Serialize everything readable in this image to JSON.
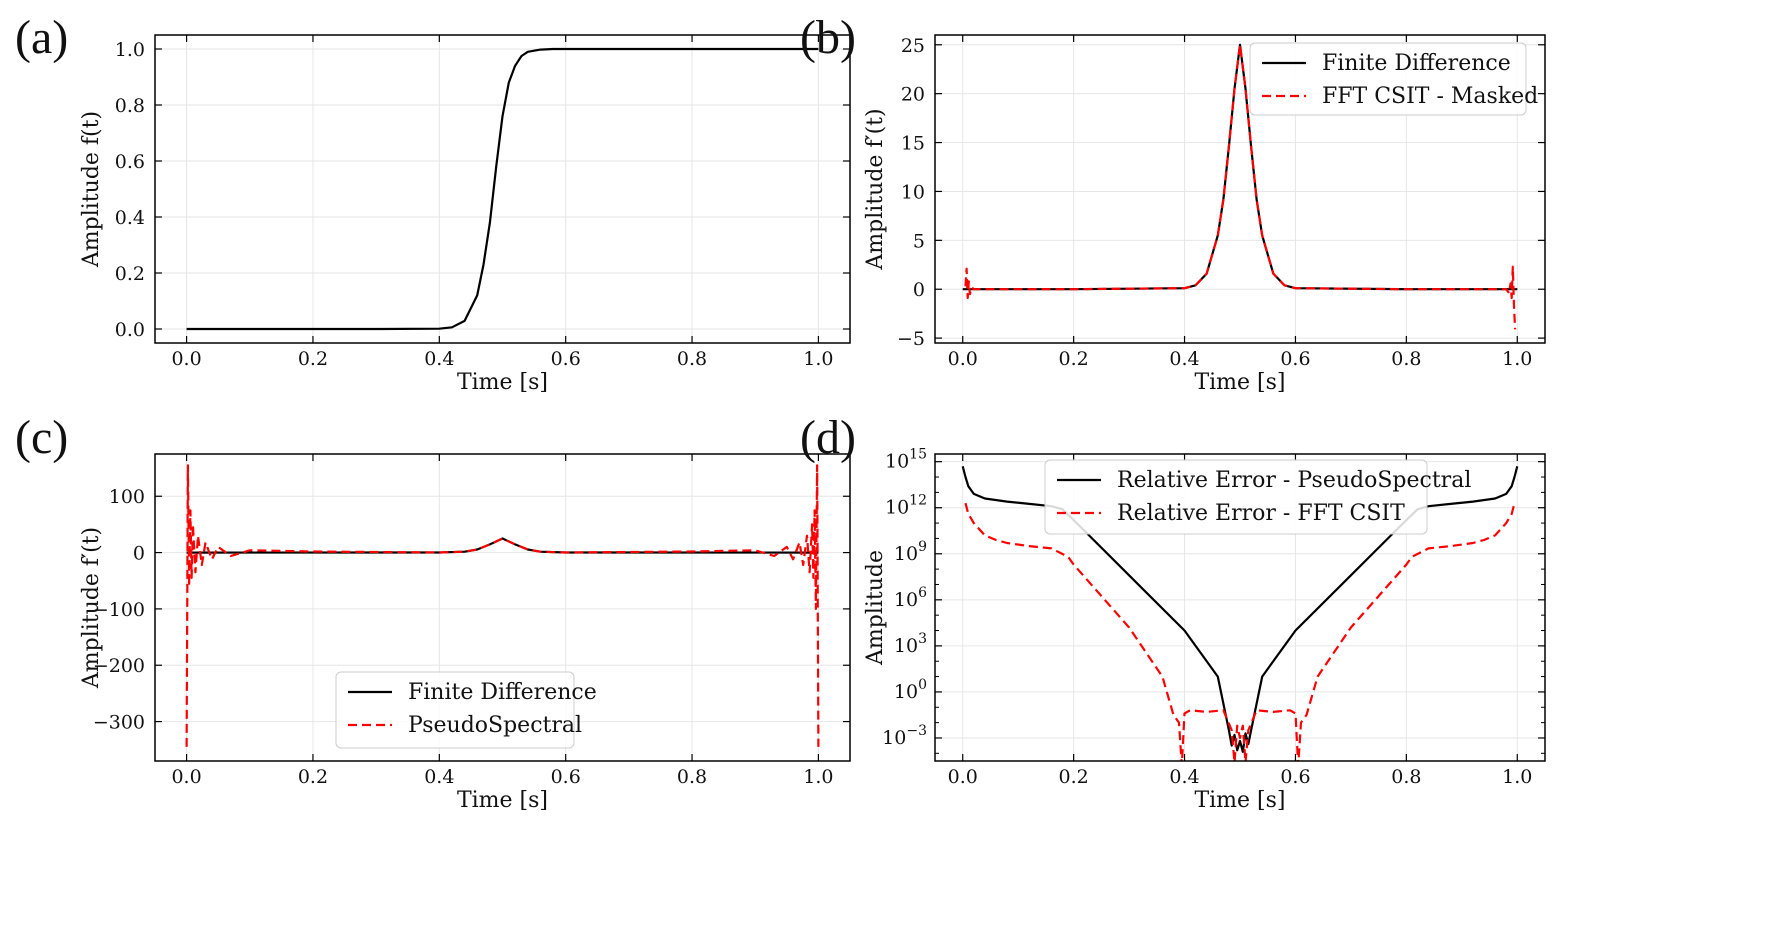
{
  "chart_data": [
    {
      "panel": "(a)",
      "type": "line",
      "xlabel": "Time [s]",
      "ylabel": "Amplitude f(t)",
      "ylabel_fn": "f(t)",
      "xlim": [
        -0.05,
        1.05
      ],
      "ylim": [
        -0.05,
        1.05
      ],
      "xticks": [
        0,
        0.2,
        0.4,
        0.6,
        0.8,
        1.0
      ],
      "xtick_labels": [
        "0.0",
        "0.2",
        "0.4",
        "0.6",
        "0.8",
        "1.0"
      ],
      "yticks": [
        0,
        0.2,
        0.4,
        0.6,
        0.8,
        1.0
      ],
      "ytick_labels": [
        "0.0",
        "0.2",
        "0.4",
        "0.6",
        "0.8",
        "1.0"
      ],
      "grid": true,
      "series": [
        {
          "name": "f(t)",
          "color": "#000000",
          "style": "solid",
          "x": [
            0,
            0.1,
            0.2,
            0.3,
            0.4,
            0.42,
            0.44,
            0.46,
            0.47,
            0.48,
            0.49,
            0.5,
            0.51,
            0.52,
            0.53,
            0.54,
            0.56,
            0.58,
            0.6,
            0.7,
            0.8,
            0.9,
            1.0
          ],
          "y": [
            0,
            0,
            0,
            0,
            0.001,
            0.006,
            0.029,
            0.12,
            0.23,
            0.38,
            0.58,
            0.76,
            0.88,
            0.94,
            0.975,
            0.99,
            0.998,
            1.0,
            1.0,
            1.0,
            1.0,
            1.0,
            1.0
          ]
        }
      ]
    },
    {
      "panel": "(b)",
      "type": "line",
      "xlabel": "Time [s]",
      "ylabel": "Amplitude f′(t)",
      "ylabel_fn": "f′(t)",
      "xlim": [
        -0.05,
        1.05
      ],
      "ylim": [
        -5.5,
        26
      ],
      "xticks": [
        0,
        0.2,
        0.4,
        0.6,
        0.8,
        1.0
      ],
      "xtick_labels": [
        "0.0",
        "0.2",
        "0.4",
        "0.6",
        "0.8",
        "1.0"
      ],
      "yticks": [
        -5,
        0,
        5,
        10,
        15,
        20,
        25
      ],
      "ytick_labels": [
        "−5",
        "0",
        "5",
        "10",
        "15",
        "20",
        "25"
      ],
      "grid": true,
      "legend": {
        "position": "top-right",
        "entries": [
          "Finite Difference",
          "FFT CSIT - Masked"
        ]
      },
      "series": [
        {
          "name": "Finite Difference",
          "color": "#000000",
          "style": "solid",
          "x": [
            0,
            0.2,
            0.4,
            0.42,
            0.44,
            0.46,
            0.47,
            0.48,
            0.49,
            0.5,
            0.51,
            0.52,
            0.53,
            0.54,
            0.56,
            0.58,
            0.6,
            0.8,
            1.0
          ],
          "y": [
            0,
            0,
            0.1,
            0.4,
            1.6,
            5.5,
            9.2,
            14.6,
            20.5,
            25,
            20.5,
            14.6,
            9.2,
            5.5,
            1.6,
            0.4,
            0.1,
            0,
            0
          ]
        },
        {
          "name": "FFT CSIT - Masked",
          "color": "#ff0000",
          "style": "dashed",
          "x": [
            0.005,
            0.007,
            0.009,
            0.011,
            0.013,
            0.016,
            0.02,
            0.2,
            0.4,
            0.42,
            0.44,
            0.46,
            0.47,
            0.48,
            0.49,
            0.5,
            0.51,
            0.52,
            0.53,
            0.54,
            0.56,
            0.58,
            0.6,
            0.8,
            0.98,
            0.985,
            0.988,
            0.99,
            0.992,
            0.994,
            0.996
          ],
          "y": [
            0.3,
            2.1,
            -0.9,
            0.8,
            -0.5,
            0.2,
            0,
            0,
            0.1,
            0.4,
            1.6,
            5.5,
            9.2,
            14.6,
            20.5,
            25,
            20.5,
            14.6,
            9.2,
            5.5,
            1.6,
            0.4,
            0.1,
            0,
            0,
            -0.4,
            0.6,
            -0.9,
            2.3,
            -1.5,
            -4.1
          ]
        }
      ]
    },
    {
      "panel": "(c)",
      "type": "line",
      "xlabel": "Time [s]",
      "ylabel": "Amplitude f′(t)",
      "ylabel_fn": "f′(t)",
      "xlim": [
        -0.05,
        1.05
      ],
      "ylim": [
        -370,
        175
      ],
      "xticks": [
        0,
        0.2,
        0.4,
        0.6,
        0.8,
        1.0
      ],
      "xtick_labels": [
        "0.0",
        "0.2",
        "0.4",
        "0.6",
        "0.8",
        "1.0"
      ],
      "yticks": [
        -300,
        -200,
        -100,
        0,
        100
      ],
      "ytick_labels": [
        "−300",
        "−200",
        "−100",
        "0",
        "100"
      ],
      "grid": true,
      "legend": {
        "position": "lower-center",
        "entries": [
          "Finite Difference",
          "PseudoSpectral"
        ]
      },
      "series": [
        {
          "name": "Finite Difference",
          "color": "#000000",
          "style": "solid",
          "x": [
            0,
            0.4,
            0.44,
            0.46,
            0.48,
            0.5,
            0.52,
            0.54,
            0.56,
            0.6,
            1.0
          ],
          "y": [
            0,
            0.1,
            1.6,
            5.5,
            14.6,
            25,
            14.6,
            5.5,
            1.6,
            0.1,
            0
          ]
        },
        {
          "name": "PseudoSpectral",
          "color": "#ff0000",
          "style": "dashed",
          "x": [
            0.0,
            0.002,
            0.004,
            0.006,
            0.008,
            0.01,
            0.014,
            0.018,
            0.024,
            0.03,
            0.04,
            0.05,
            0.07,
            0.1,
            0.2,
            0.4,
            0.44,
            0.46,
            0.48,
            0.5,
            0.52,
            0.54,
            0.56,
            0.6,
            0.8,
            0.9,
            0.93,
            0.95,
            0.96,
            0.97,
            0.976,
            0.982,
            0.986,
            0.99,
            0.992,
            0.994,
            0.996,
            0.998,
            1.0
          ],
          "y": [
            -345,
            155,
            -60,
            75,
            -45,
            50,
            -35,
            30,
            -22,
            18,
            -12,
            10,
            -6,
            4,
            2,
            0.1,
            1.6,
            5.5,
            14.6,
            25,
            14.6,
            5.5,
            1.6,
            0.1,
            2,
            4,
            -6,
            10,
            -12,
            18,
            -22,
            30,
            -35,
            50,
            -45,
            75,
            -100,
            155,
            -345
          ]
        }
      ]
    },
    {
      "panel": "(d)",
      "type": "line",
      "xlabel": "Time [s]",
      "ylabel": "Amplitude",
      "yscale": "log",
      "xlim": [
        -0.05,
        1.05
      ],
      "ylim_log10": [
        -4.5,
        15.5
      ],
      "xticks": [
        0,
        0.2,
        0.4,
        0.6,
        0.8,
        1.0
      ],
      "xtick_labels": [
        "0.0",
        "0.2",
        "0.4",
        "0.6",
        "0.8",
        "1.0"
      ],
      "ytick_exponents": [
        -3,
        0,
        3,
        6,
        9,
        12,
        15
      ],
      "ytick_labels": [
        "−3",
        "0",
        "3",
        "6",
        "9",
        "12",
        "15"
      ],
      "ytick_base": "10",
      "grid": true,
      "legend": {
        "position": "upper-center",
        "entries": [
          "Relative Error - PseudoSpectral",
          "Relative Error - FFT CSIT"
        ]
      },
      "series": [
        {
          "name": "Relative Error - PseudoSpectral",
          "color": "#000000",
          "style": "solid",
          "x": [
            0.0,
            0.005,
            0.01,
            0.02,
            0.04,
            0.08,
            0.12,
            0.16,
            0.18,
            0.2,
            0.3,
            0.4,
            0.46,
            0.48,
            0.485,
            0.49,
            0.495,
            0.5,
            0.505,
            0.51,
            0.515,
            0.52,
            0.54,
            0.6,
            0.7,
            0.8,
            0.82,
            0.84,
            0.88,
            0.92,
            0.96,
            0.98,
            0.99,
            0.995,
            1.0
          ],
          "y_log10": [
            14.7,
            14.0,
            13.4,
            12.9,
            12.6,
            12.4,
            12.25,
            12.1,
            11.9,
            11.2,
            7.6,
            4.0,
            1.0,
            -2.5,
            -3.5,
            -2.8,
            -3.8,
            -3.2,
            -3.9,
            -2.7,
            -3.4,
            -2.5,
            1.0,
            4.0,
            7.6,
            11.2,
            11.9,
            12.1,
            12.25,
            12.4,
            12.6,
            12.9,
            13.4,
            14.0,
            14.7
          ]
        },
        {
          "name": "Relative Error - FFT CSIT",
          "color": "#ff0000",
          "style": "dashed",
          "x": [
            0.005,
            0.01,
            0.02,
            0.04,
            0.06,
            0.08,
            0.12,
            0.16,
            0.19,
            0.2,
            0.3,
            0.36,
            0.38,
            0.39,
            0.395,
            0.4,
            0.41,
            0.44,
            0.47,
            0.485,
            0.49,
            0.495,
            0.5,
            0.505,
            0.51,
            0.515,
            0.53,
            0.56,
            0.59,
            0.6,
            0.605,
            0.61,
            0.62,
            0.64,
            0.7,
            0.8,
            0.81,
            0.84,
            0.88,
            0.92,
            0.94,
            0.96,
            0.98,
            0.99,
            0.995
          ],
          "y_log10": [
            12.3,
            11.6,
            11.0,
            10.2,
            9.9,
            9.7,
            9.5,
            9.35,
            8.8,
            8.3,
            4.2,
            1.0,
            -1.5,
            -2.0,
            -4.8,
            -1.4,
            -1.2,
            -1.3,
            -1.2,
            -2.5,
            -4.6,
            -2.2,
            -3.0,
            -2.2,
            -4.6,
            -2.5,
            -1.2,
            -1.3,
            -1.2,
            -1.4,
            -4.8,
            -2.0,
            -1.5,
            1.0,
            4.2,
            8.3,
            8.8,
            9.35,
            9.5,
            9.7,
            9.9,
            10.2,
            11.0,
            11.6,
            12.3
          ]
        }
      ]
    }
  ]
}
